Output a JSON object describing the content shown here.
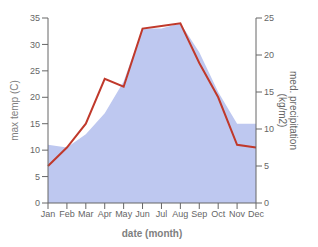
{
  "chart_data": {
    "type": "line",
    "categories": [
      "Jan",
      "Feb",
      "Mar",
      "Apr",
      "May",
      "Jun",
      "Jul",
      "Aug",
      "Sep",
      "Oct",
      "Nov",
      "Dec"
    ],
    "series": [
      {
        "type": "area",
        "color": "#bec8f0",
        "values": [
          11,
          10.5,
          13,
          17,
          23,
          33,
          33,
          34,
          28.5,
          21,
          15,
          15
        ]
      },
      {
        "type": "line",
        "color": "#c0392b",
        "values": [
          7,
          10.5,
          15,
          23.5,
          22,
          33,
          33.5,
          34,
          26.5,
          20,
          11,
          10.5
        ]
      }
    ],
    "xlabel": "date (month)",
    "ylabel": "max temp (C)",
    "y2label": "med. precipitation\n(kg/m2)",
    "ylim": [
      0,
      35
    ],
    "yticks": [
      0,
      5,
      10,
      15,
      20,
      25,
      30,
      35
    ],
    "y2lim": [
      0,
      25
    ],
    "y2ticks": [
      0,
      5,
      10,
      15,
      20,
      25
    ]
  }
}
